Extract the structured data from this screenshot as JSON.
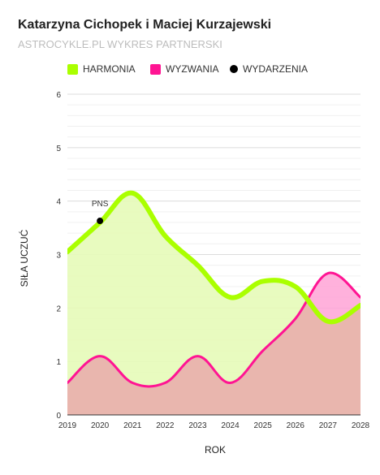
{
  "title": "Katarzyna Cichopek i Maciej Kurzajewski",
  "subtitle": "ASTROCYKLE.PL WYKRES PARTNERSKI",
  "legend": {
    "harmonia": "HARMONIA",
    "wyzwania": "WYZWANIA",
    "wydarzenia": "WYDARZENIA"
  },
  "colors": {
    "harmonia_line": "#aaff00",
    "harmonia_fill": "#e6fbb8",
    "wyzwania_line": "#ff1493",
    "wyzwania_fill": "#ffa3d6",
    "overlap_fill": "#e9b6ae",
    "event": "#000000"
  },
  "chart_data": {
    "type": "area",
    "xlabel": "ROK",
    "ylabel": "SIŁA UCZUĆ",
    "xlim": [
      2019,
      2028
    ],
    "ylim": [
      0,
      6
    ],
    "x_ticks": [
      2019,
      2020,
      2021,
      2022,
      2023,
      2024,
      2025,
      2026,
      2027,
      2028
    ],
    "y_ticks": [
      0,
      1,
      2,
      3,
      4,
      5,
      6
    ],
    "grid": "horizontal",
    "legend_position": "top",
    "series": [
      {
        "name": "HARMONIA",
        "x": [
          2019,
          2020,
          2021,
          2022,
          2023,
          2024,
          2025,
          2026,
          2027,
          2028
        ],
        "values": [
          3.05,
          3.6,
          4.15,
          3.35,
          2.8,
          2.2,
          2.5,
          2.4,
          1.75,
          2.05
        ]
      },
      {
        "name": "WYZWANIA",
        "x": [
          2019,
          2020,
          2021,
          2022,
          2023,
          2024,
          2025,
          2026,
          2027,
          2028
        ],
        "values": [
          0.6,
          1.1,
          0.6,
          0.6,
          1.1,
          0.6,
          1.2,
          1.8,
          2.65,
          2.2
        ]
      }
    ],
    "events": [
      {
        "label": "PNS",
        "x": 2020,
        "y": 3.63
      }
    ]
  }
}
